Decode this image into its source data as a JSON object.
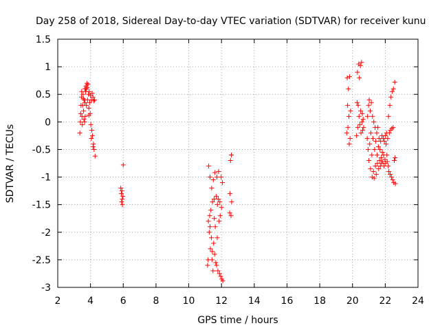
{
  "chart_data": {
    "type": "scatter",
    "title": "Day 258 of 2018, Sidereal Day-to-day VTEC variation (SDTVAR) for receiver kunu",
    "xlabel": "GPS time / hours",
    "ylabel": "SDTVAR / TECUs",
    "xlim": [
      2,
      24
    ],
    "ylim": [
      -3,
      1.5
    ],
    "xticks": [
      "2",
      "4",
      "6",
      "8",
      "10",
      "12",
      "14",
      "16",
      "18",
      "20",
      "22",
      "24"
    ],
    "yticks": [
      "1.5",
      "1",
      "0.5",
      "0",
      "-0.5",
      "-1",
      "-1.5",
      "-2",
      "-2.5",
      "-3"
    ],
    "grid": true,
    "marker": "+",
    "color": "#ff0000",
    "series": [
      {
        "name": "SDTVAR",
        "points": [
          [
            3.35,
            -0.2
          ],
          [
            3.38,
            0.0
          ],
          [
            3.4,
            0.15
          ],
          [
            3.42,
            0.3
          ],
          [
            3.45,
            0.45
          ],
          [
            3.48,
            0.1
          ],
          [
            3.5,
            -0.05
          ],
          [
            3.52,
            0.3
          ],
          [
            3.55,
            0.5
          ],
          [
            3.58,
            0.2
          ],
          [
            3.6,
            0.05
          ],
          [
            3.62,
            0.4
          ],
          [
            3.65,
            0.6
          ],
          [
            3.68,
            0.1
          ],
          [
            3.7,
            0.55
          ],
          [
            3.72,
            0.65
          ],
          [
            3.75,
            0.3
          ],
          [
            3.78,
            0.7
          ],
          [
            3.8,
            0.62
          ],
          [
            3.82,
            0.4
          ],
          [
            3.85,
            0.68
          ],
          [
            3.88,
            0.5
          ],
          [
            3.9,
            0.25
          ],
          [
            3.92,
            0.55
          ],
          [
            3.95,
            0.35
          ],
          [
            3.98,
            0.15
          ],
          [
            4.0,
            0.48
          ],
          [
            4.02,
            -0.05
          ],
          [
            4.05,
            0.4
          ],
          [
            4.08,
            -0.15
          ],
          [
            4.1,
            0.52
          ],
          [
            4.12,
            -0.25
          ],
          [
            4.15,
            0.45
          ],
          [
            4.18,
            -0.4
          ],
          [
            4.2,
            0.38
          ],
          [
            4.22,
            -0.5
          ],
          [
            4.25,
            0.4
          ],
          [
            4.28,
            -0.62
          ],
          [
            3.46,
            0.55
          ],
          [
            3.64,
            0.0
          ],
          [
            3.9,
            0.12
          ],
          [
            4.05,
            -0.3
          ],
          [
            3.56,
            0.42
          ],
          [
            3.74,
            0.6
          ],
          [
            3.66,
            0.35
          ],
          [
            4.16,
            -0.45
          ],
          [
            5.85,
            -1.2
          ],
          [
            5.88,
            -1.3
          ],
          [
            5.9,
            -1.45
          ],
          [
            5.92,
            -1.25
          ],
          [
            5.95,
            -1.5
          ],
          [
            5.98,
            -1.35
          ],
          [
            6.0,
            -0.78
          ],
          [
            5.94,
            -1.4
          ],
          [
            11.15,
            -2.6
          ],
          [
            11.18,
            -2.5
          ],
          [
            11.2,
            -1.8
          ],
          [
            11.22,
            -0.8
          ],
          [
            11.25,
            -2.0
          ],
          [
            11.28,
            -1.7
          ],
          [
            11.3,
            -1.0
          ],
          [
            11.32,
            -2.3
          ],
          [
            11.35,
            -1.6
          ],
          [
            11.38,
            -2.1
          ],
          [
            11.4,
            -1.2
          ],
          [
            11.42,
            -2.5
          ],
          [
            11.45,
            -1.45
          ],
          [
            11.48,
            -2.7
          ],
          [
            11.5,
            -1.05
          ],
          [
            11.52,
            -2.2
          ],
          [
            11.55,
            -1.4
          ],
          [
            11.58,
            -2.4
          ],
          [
            11.6,
            -0.92
          ],
          [
            11.62,
            -1.9
          ],
          [
            11.65,
            -2.55
          ],
          [
            11.68,
            -1.35
          ],
          [
            11.7,
            -2.6
          ],
          [
            11.72,
            -1.0
          ],
          [
            11.75,
            -1.5
          ],
          [
            11.78,
            -2.7
          ],
          [
            11.8,
            -1.4
          ],
          [
            11.82,
            -0.9
          ],
          [
            11.85,
            -1.8
          ],
          [
            11.88,
            -2.75
          ],
          [
            11.9,
            -1.45
          ],
          [
            11.92,
            -1.7
          ],
          [
            11.95,
            -2.8
          ],
          [
            11.98,
            -1.0
          ],
          [
            12.0,
            -1.55
          ],
          [
            12.02,
            -2.85
          ],
          [
            12.05,
            -1.1
          ],
          [
            12.08,
            -2.88
          ],
          [
            11.3,
            -1.9
          ],
          [
            11.44,
            -2.35
          ],
          [
            11.56,
            -1.75
          ],
          [
            11.74,
            -2.1
          ],
          [
            12.5,
            -1.65
          ],
          [
            12.52,
            -1.3
          ],
          [
            12.55,
            -0.7
          ],
          [
            12.58,
            -1.7
          ],
          [
            12.6,
            -0.6
          ],
          [
            12.62,
            -1.45
          ],
          [
            19.65,
            -0.2
          ],
          [
            19.68,
            0.8
          ],
          [
            19.7,
            0.3
          ],
          [
            19.72,
            -0.1
          ],
          [
            19.75,
            0.6
          ],
          [
            19.78,
            0.1
          ],
          [
            19.8,
            -0.4
          ],
          [
            19.82,
            0.82
          ],
          [
            19.85,
            -0.3
          ],
          [
            19.88,
            0.2
          ],
          [
            20.25,
            -0.25
          ],
          [
            20.28,
            0.35
          ],
          [
            20.3,
            0.9
          ],
          [
            20.32,
            -0.1
          ],
          [
            20.35,
            0.3
          ],
          [
            20.38,
            1.05
          ],
          [
            20.4,
            0.1
          ],
          [
            20.42,
            0.8
          ],
          [
            20.45,
            -0.05
          ],
          [
            20.48,
            1.02
          ],
          [
            20.5,
            0.2
          ],
          [
            20.52,
            -0.2
          ],
          [
            20.55,
            1.08
          ],
          [
            20.58,
            0.0
          ],
          [
            20.6,
            0.15
          ],
          [
            20.62,
            -0.15
          ],
          [
            20.65,
            0.05
          ],
          [
            20.68,
            -0.1
          ],
          [
            20.9,
            -0.3
          ],
          [
            20.92,
            0.1
          ],
          [
            20.95,
            -0.5
          ],
          [
            20.98,
            0.3
          ],
          [
            21.0,
            -0.7
          ],
          [
            21.02,
            0.4
          ],
          [
            21.05,
            -0.4
          ],
          [
            21.08,
            0.2
          ],
          [
            21.1,
            -0.85
          ],
          [
            21.12,
            -0.2
          ],
          [
            21.15,
            0.35
          ],
          [
            21.18,
            -0.6
          ],
          [
            21.2,
            -1.0
          ],
          [
            21.22,
            0.1
          ],
          [
            21.25,
            -0.3
          ],
          [
            21.28,
            -0.9
          ],
          [
            21.3,
            0.0
          ],
          [
            21.32,
            -1.02
          ],
          [
            21.35,
            -0.5
          ],
          [
            21.38,
            -0.1
          ],
          [
            21.4,
            -0.8
          ],
          [
            21.42,
            -0.35
          ],
          [
            21.45,
            -0.95
          ],
          [
            21.48,
            -0.2
          ],
          [
            21.5,
            -0.6
          ],
          [
            21.52,
            -0.75
          ],
          [
            21.55,
            -0.1
          ],
          [
            21.58,
            -0.45
          ],
          [
            21.6,
            -0.85
          ],
          [
            21.62,
            -0.3
          ],
          [
            21.65,
            -0.7
          ],
          [
            21.68,
            -0.5
          ],
          [
            21.7,
            -0.8
          ],
          [
            21.72,
            -0.35
          ],
          [
            21.75,
            -0.65
          ],
          [
            21.78,
            -0.75
          ],
          [
            21.8,
            -0.25
          ],
          [
            21.82,
            -0.55
          ],
          [
            21.85,
            -0.72
          ],
          [
            21.88,
            -0.3
          ],
          [
            21.9,
            -0.6
          ],
          [
            21.92,
            -0.8
          ],
          [
            21.95,
            -0.35
          ],
          [
            21.98,
            -0.68
          ],
          [
            22.0,
            -0.25
          ],
          [
            22.02,
            -0.75
          ],
          [
            22.05,
            -0.4
          ],
          [
            22.08,
            -0.2
          ],
          [
            22.1,
            -0.6
          ],
          [
            22.12,
            -0.72
          ],
          [
            22.15,
            -0.3
          ],
          [
            22.18,
            -0.8
          ],
          [
            22.2,
            0.1
          ],
          [
            22.22,
            -0.9
          ],
          [
            22.25,
            -0.2
          ],
          [
            22.28,
            0.3
          ],
          [
            22.3,
            -0.95
          ],
          [
            22.32,
            -0.15
          ],
          [
            22.35,
            0.45
          ],
          [
            22.38,
            -1.0
          ],
          [
            22.4,
            -0.12
          ],
          [
            22.42,
            0.55
          ],
          [
            22.45,
            -1.05
          ],
          [
            22.48,
            -0.1
          ],
          [
            22.5,
            0.6
          ],
          [
            22.52,
            -1.1
          ],
          [
            22.55,
            -0.7
          ],
          [
            22.58,
            0.72
          ],
          [
            22.6,
            -0.65
          ],
          [
            22.62,
            -1.12
          ]
        ]
      }
    ]
  }
}
